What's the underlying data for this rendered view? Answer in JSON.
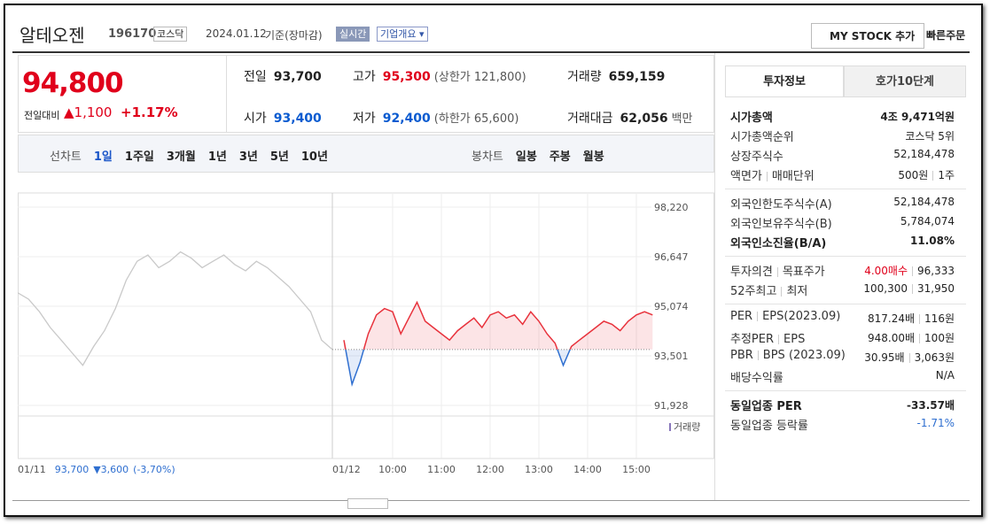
{
  "header": {
    "name": "알테오젠",
    "code": "196170",
    "market": "코스닥",
    "date": "2024.01.12",
    "basis": "기준(장마감)",
    "realtime": "실시간",
    "overview": "기업개요 ▾",
    "mystock": "MY STOCK 추가",
    "quick": "빠른주문"
  },
  "price": {
    "current": "94,800",
    "change_label": "전일대비",
    "change": "▲1,100",
    "rate": "+1.17%"
  },
  "quotes": [
    {
      "label": "전일",
      "value": "93,700"
    },
    {
      "label": "고가",
      "value": "95,300",
      "note": "(상한가 121,800)",
      "color": "#e0001b"
    },
    {
      "label": "거래량",
      "value": "659,159"
    },
    {
      "label": "시가",
      "value": "93,400",
      "color": "#0a5bd0"
    },
    {
      "label": "저가",
      "value": "92,400",
      "note": "(하한가 65,600)",
      "color": "#0a5bd0"
    },
    {
      "label": "거래대금",
      "value": "62,056",
      "note": "백만"
    }
  ],
  "tabs": {
    "line_label": "선차트",
    "periods": [
      "1일",
      "1주일",
      "3개월",
      "1년",
      "3년",
      "5년",
      "10년"
    ],
    "candle_label": "봉차트",
    "candles": [
      "일봉",
      "주봉",
      "월봉"
    ]
  },
  "chart_data": {
    "type": "line",
    "previous": {
      "values": [
        95500,
        95300,
        94900,
        94400,
        94000,
        93600,
        93200,
        93800,
        94300,
        95000,
        95900,
        96500,
        96700,
        96300,
        96500,
        96800,
        96600,
        96300,
        96500,
        96700,
        96400,
        96200,
        96500,
        96300,
        96000,
        95700,
        95300,
        94900,
        94000,
        93700
      ],
      "color": "#c9c9c9"
    },
    "today": {
      "x": [
        "09:00",
        "09:10",
        "09:20",
        "09:30",
        "09:40",
        "09:50",
        "10:00",
        "10:10",
        "10:20",
        "10:30",
        "10:40",
        "10:50",
        "11:00",
        "11:10",
        "11:20",
        "11:30",
        "11:40",
        "11:50",
        "12:00",
        "12:10",
        "12:20",
        "12:30",
        "12:40",
        "12:50",
        "13:00",
        "13:10",
        "13:20",
        "13:30",
        "13:40",
        "13:50",
        "14:00",
        "14:10",
        "14:20",
        "14:30",
        "14:40",
        "14:50",
        "15:00",
        "15:10",
        "15:20"
      ],
      "values": [
        94000,
        92600,
        93300,
        94200,
        94800,
        95000,
        94900,
        94200,
        94700,
        95200,
        94600,
        94400,
        94200,
        94000,
        94300,
        94500,
        94700,
        94400,
        94800,
        94900,
        94700,
        94800,
        94500,
        94900,
        94600,
        94200,
        93900,
        93200,
        93800,
        94000,
        94200,
        94400,
        94600,
        94500,
        94300,
        94600,
        94800,
        94900,
        94800
      ],
      "up_color": "#e8323c",
      "down_color": "#2f6fd0"
    },
    "prev_close": 93700,
    "ylim": [
      91928,
      98220
    ],
    "yticks": [
      {
        "value": 98220,
        "label": "98,220"
      },
      {
        "value": 96647,
        "label": "96,647"
      },
      {
        "value": 95074,
        "label": "95,074"
      },
      {
        "value": 93501,
        "label": "93,501"
      },
      {
        "value": 91928,
        "label": "91,928"
      }
    ],
    "xticks": [
      "10:00",
      "11:00",
      "12:00",
      "13:00",
      "14:00",
      "15:00"
    ],
    "day_label": "01/12",
    "volume_legend": "거래량",
    "grid": true
  },
  "prev_summary": {
    "date": "01/11",
    "close": "93,700",
    "change": "▼3,600",
    "rate": "(-3,70%)"
  },
  "side": {
    "tabs": [
      "투자정보",
      "호가10단계"
    ],
    "groups": [
      [
        {
          "labels": [
            "시가총액"
          ],
          "values": [
            "4조 9,471억원"
          ],
          "strong": true
        },
        {
          "labels": [
            "시가총액순위"
          ],
          "values": [
            "코스닥 5위"
          ]
        },
        {
          "labels": [
            "상장주식수"
          ],
          "values": [
            "52,184,478"
          ]
        },
        {
          "labels": [
            "액면가",
            "매매단위"
          ],
          "values": [
            "500원",
            "1주"
          ]
        }
      ],
      [
        {
          "labels": [
            "외국인한도주식수(A)"
          ],
          "values": [
            "52,184,478"
          ]
        },
        {
          "labels": [
            "외국인보유주식수(B)"
          ],
          "values": [
            "5,784,074"
          ]
        },
        {
          "labels": [
            "외국인소진율(B/A)"
          ],
          "values": [
            "11.08%"
          ],
          "strong": true
        }
      ],
      [
        {
          "labels": [
            "투자의견",
            "목표주가"
          ],
          "values": [
            "4.00매수",
            "96,333"
          ],
          "color": "#e0001b"
        },
        {
          "labels": [
            "52주최고",
            "최저"
          ],
          "values": [
            "100,300",
            "31,950"
          ]
        }
      ],
      [
        {
          "labels": [
            "PER",
            "EPS(2023.09)"
          ],
          "values": [
            "817.24배",
            "116원"
          ]
        },
        {
          "labels": [
            "추정PER",
            "EPS"
          ],
          "values": [
            "948.00배",
            "100원"
          ]
        },
        {
          "labels": [
            "PBR",
            "BPS (2023.09)"
          ],
          "values": [
            "30.95배",
            "3,063원"
          ]
        },
        {
          "labels": [
            "배당수익률"
          ],
          "values": [
            "N/A"
          ]
        }
      ],
      [
        {
          "labels": [
            "동일업종 PER"
          ],
          "values": [
            "-33.57배"
          ],
          "strong": true
        },
        {
          "labels": [
            "동일업종 등락률"
          ],
          "values": [
            "-1.71%"
          ],
          "color": "#2f6fd0"
        }
      ]
    ]
  }
}
